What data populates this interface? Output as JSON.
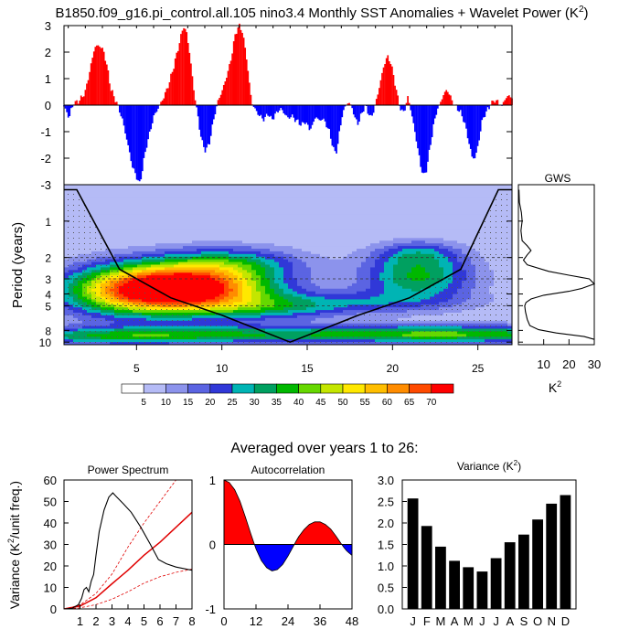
{
  "title": {
    "main": "B1850.f09_g16.pi_control.all.105 nino3.4 Monthly SST Anomalies + Wavelet Power (K",
    "sup": "2",
    "close": ")"
  },
  "subtitle": "Averaged over years 1 to 26:",
  "colors": {
    "positive": "#ff0000",
    "negative": "#0000ff",
    "sig_line": "#e00000"
  },
  "chart_data": [
    {
      "type": "area",
      "name": "anomaly-timeseries",
      "xlim": [
        0.75,
        27
      ],
      "ylim": [
        -3,
        3
      ],
      "yticks": [
        3,
        2,
        1,
        0,
        -1,
        -2,
        -3
      ],
      "anchors": [
        [
          0.75,
          -0.05
        ],
        [
          0.9,
          -0.25
        ],
        [
          1.05,
          -0.5
        ],
        [
          1.2,
          -0.1
        ],
        [
          1.4,
          0.08
        ],
        [
          1.7,
          0.2
        ],
        [
          2.0,
          0.5
        ],
        [
          2.3,
          1.4
        ],
        [
          2.55,
          2.2
        ],
        [
          2.85,
          2.25
        ],
        [
          3.1,
          2.0
        ],
        [
          3.35,
          1.2
        ],
        [
          3.5,
          0.6
        ],
        [
          3.7,
          0.3
        ],
        [
          3.9,
          0.0
        ],
        [
          4.2,
          -0.6
        ],
        [
          4.5,
          -1.5
        ],
        [
          4.75,
          -2.3
        ],
        [
          5.0,
          -2.7
        ],
        [
          5.2,
          -3.0
        ],
        [
          5.4,
          -2.2
        ],
        [
          5.6,
          -1.5
        ],
        [
          5.8,
          -1.0
        ],
        [
          6.0,
          -0.45
        ],
        [
          6.2,
          -0.2
        ],
        [
          6.4,
          0.05
        ],
        [
          6.6,
          0.3
        ],
        [
          6.9,
          0.8
        ],
        [
          7.2,
          1.5
        ],
        [
          7.5,
          2.3
        ],
        [
          7.75,
          3.0
        ],
        [
          7.95,
          2.7
        ],
        [
          8.15,
          1.8
        ],
        [
          8.35,
          0.6
        ],
        [
          8.5,
          0.0
        ],
        [
          8.7,
          -0.9
        ],
        [
          8.9,
          -1.55
        ],
        [
          9.05,
          -1.7
        ],
        [
          9.25,
          -1.5
        ],
        [
          9.45,
          -0.8
        ],
        [
          9.6,
          -0.3
        ],
        [
          9.8,
          0.2
        ],
        [
          10.0,
          0.5
        ],
        [
          10.2,
          0.9
        ],
        [
          10.5,
          1.6
        ],
        [
          10.8,
          2.7
        ],
        [
          11.0,
          3.0
        ],
        [
          11.2,
          2.8
        ],
        [
          11.45,
          1.8
        ],
        [
          11.65,
          0.6
        ],
        [
          11.8,
          0.0
        ],
        [
          11.95,
          -0.15
        ],
        [
          12.2,
          -0.4
        ],
        [
          12.5,
          -0.55
        ],
        [
          12.7,
          -0.3
        ],
        [
          12.9,
          -0.55
        ],
        [
          13.1,
          -0.4
        ],
        [
          13.3,
          -0.2
        ],
        [
          13.5,
          -0.15
        ],
        [
          13.7,
          -0.35
        ],
        [
          13.9,
          -0.5
        ],
        [
          14.1,
          -0.4
        ],
        [
          14.3,
          -0.55
        ],
        [
          14.5,
          -0.65
        ],
        [
          14.7,
          -0.75
        ],
        [
          14.9,
          -0.6
        ],
        [
          15.1,
          -0.9
        ],
        [
          15.3,
          -0.8
        ],
        [
          15.5,
          -0.4
        ],
        [
          15.7,
          -0.6
        ],
        [
          15.9,
          -0.5
        ],
        [
          16.1,
          -0.7
        ],
        [
          16.3,
          -1.0
        ],
        [
          16.45,
          -1.4
        ],
        [
          16.6,
          -1.8
        ],
        [
          16.75,
          -1.7
        ],
        [
          16.9,
          -1.0
        ],
        [
          17.05,
          -0.4
        ],
        [
          17.2,
          -0.1
        ],
        [
          17.4,
          0.1
        ],
        [
          17.6,
          0.0
        ],
        [
          17.8,
          -0.5
        ],
        [
          18.0,
          -0.7
        ],
        [
          18.2,
          -0.3
        ],
        [
          18.4,
          0.0
        ],
        [
          18.6,
          -0.3
        ],
        [
          18.75,
          -0.5
        ],
        [
          18.9,
          -0.2
        ],
        [
          19.1,
          0.3
        ],
        [
          19.3,
          0.9
        ],
        [
          19.5,
          1.5
        ],
        [
          19.7,
          1.85
        ],
        [
          19.9,
          1.6
        ],
        [
          20.1,
          1.0
        ],
        [
          20.3,
          0.3
        ],
        [
          20.45,
          -0.1
        ],
        [
          20.6,
          -0.3
        ],
        [
          20.75,
          -0.1
        ],
        [
          20.9,
          0.3
        ],
        [
          21.0,
          0.05
        ],
        [
          21.2,
          -0.6
        ],
        [
          21.45,
          -1.5
        ],
        [
          21.65,
          -2.3
        ],
        [
          21.85,
          -2.7
        ],
        [
          22.0,
          -2.4
        ],
        [
          22.2,
          -1.6
        ],
        [
          22.4,
          -0.8
        ],
        [
          22.6,
          -0.2
        ],
        [
          22.8,
          0.1
        ],
        [
          23.0,
          0.4
        ],
        [
          23.2,
          0.6
        ],
        [
          23.4,
          0.3
        ],
        [
          23.6,
          0.05
        ],
        [
          23.8,
          -0.1
        ],
        [
          24.0,
          -0.3
        ],
        [
          24.2,
          -0.6
        ],
        [
          24.45,
          -1.3
        ],
        [
          24.65,
          -1.95
        ],
        [
          24.85,
          -2.0
        ],
        [
          25.05,
          -1.4
        ],
        [
          25.25,
          -0.6
        ],
        [
          25.45,
          -0.3
        ],
        [
          25.65,
          -0.1
        ],
        [
          25.8,
          0.05
        ],
        [
          26.0,
          0.2
        ],
        [
          26.2,
          0.1
        ],
        [
          26.4,
          -0.05
        ],
        [
          26.6,
          0.25
        ],
        [
          26.8,
          0.35
        ],
        [
          27.0,
          0.3
        ]
      ]
    },
    {
      "type": "heatmap",
      "name": "wavelet-power",
      "xlabel": "",
      "ylabel": "Period (years)",
      "xlim": [
        0.75,
        27
      ],
      "xticks": [
        5,
        10,
        15,
        20,
        25
      ],
      "ylim": [
        0.5,
        10.5
      ],
      "yticks": [
        1,
        2,
        3,
        4,
        5,
        8,
        10
      ],
      "levels": [
        0,
        5,
        10,
        15,
        20,
        25,
        30,
        35,
        40,
        45,
        50,
        55,
        60,
        65,
        70
      ],
      "level_colors": [
        "#ffffff",
        "#b5bbf6",
        "#8c93ec",
        "#5b64e2",
        "#3038d8",
        "#00b4b4",
        "#00a060",
        "#00b800",
        "#66d800",
        "#c4e600",
        "#ffe800",
        "#ffbe00",
        "#ff8c00",
        "#ff4a00",
        "#ff0000"
      ],
      "background_level": 5,
      "peaks": [
        {
          "t": 8.0,
          "p": 3.6,
          "st": 3.4,
          "sp": 0.32,
          "a": 72
        },
        {
          "t": 4.0,
          "p": 3.8,
          "st": 2.8,
          "sp": 0.35,
          "a": 30
        },
        {
          "t": 10.5,
          "p": 2.2,
          "st": 3.0,
          "sp": 0.22,
          "a": 20
        },
        {
          "t": 21.5,
          "p": 2.9,
          "st": 2.3,
          "sp": 0.3,
          "a": 30
        },
        {
          "t": 21.5,
          "p": 1.85,
          "st": 1.8,
          "sp": 0.18,
          "a": 16
        },
        {
          "t": 16.0,
          "p": 8.6,
          "st": 14.0,
          "sp": 0.12,
          "a": 28
        },
        {
          "t": 4.0,
          "p": 9.2,
          "st": 4.5,
          "sp": 0.1,
          "a": 14
        },
        {
          "t": 24.0,
          "p": 8.6,
          "st": 4.5,
          "sp": 0.12,
          "a": 12
        },
        {
          "t": 17.0,
          "p": 4.7,
          "st": 5.0,
          "sp": 0.16,
          "a": 16
        },
        {
          "t": 13.0,
          "p": 5.5,
          "st": 3.0,
          "sp": 0.15,
          "a": 12
        }
      ],
      "cone_of_influence": [
        [
          0.75,
          0.55
        ],
        [
          1.5,
          0.55
        ],
        [
          4.0,
          2.5
        ],
        [
          7.0,
          4.3
        ],
        [
          10.0,
          6.0
        ],
        [
          14.0,
          10.0
        ],
        [
          18.0,
          6.0
        ],
        [
          21.0,
          4.3
        ],
        [
          24.0,
          2.5
        ],
        [
          26.2,
          0.55
        ],
        [
          27.0,
          0.55
        ]
      ],
      "sig_dashed_periods": [
        2.0,
        3.0,
        5.0
      ]
    },
    {
      "type": "line",
      "name": "global-wavelet-spectrum",
      "title": "GWS",
      "xlabel": "K",
      "xlabel_sup": "2",
      "xlim": [
        0,
        30
      ],
      "xticks": [
        10,
        20,
        30
      ],
      "points": [
        [
          0.55,
          0.2
        ],
        [
          0.7,
          0.4
        ],
        [
          0.85,
          1.2
        ],
        [
          1.0,
          1.5
        ],
        [
          1.2,
          1.0
        ],
        [
          1.45,
          1.5
        ],
        [
          1.6,
          3.5
        ],
        [
          1.75,
          5.0
        ],
        [
          1.9,
          3.5
        ],
        [
          2.1,
          2.0
        ],
        [
          2.3,
          3.5
        ],
        [
          2.6,
          12.0
        ],
        [
          2.8,
          20.0
        ],
        [
          3.0,
          28.0
        ],
        [
          3.3,
          30.0
        ],
        [
          3.6,
          25.0
        ],
        [
          3.8,
          20.0
        ],
        [
          4.1,
          10.0
        ],
        [
          4.4,
          5.0
        ],
        [
          4.7,
          3.0
        ],
        [
          5.0,
          2.5
        ],
        [
          5.6,
          2.8
        ],
        [
          6.5,
          3.5
        ],
        [
          7.3,
          4.5
        ],
        [
          7.9,
          8.0
        ],
        [
          8.4,
          15.0
        ],
        [
          9.0,
          26.0
        ],
        [
          9.5,
          30.0
        ]
      ]
    },
    {
      "type": "line",
      "name": "power-spectrum",
      "title": "Power Spectrum",
      "ylabel": "Variance (K",
      "ylabel_sup": "2",
      "ylabel_rest": "/unit freq.)",
      "xlim": [
        0,
        8
      ],
      "xticks": [
        1,
        2,
        3,
        4,
        5,
        6,
        7,
        8
      ],
      "ylim": [
        0,
        60
      ],
      "yticks": [
        0,
        10,
        20,
        30,
        40,
        50,
        60
      ],
      "spectrum": [
        [
          0,
          0
        ],
        [
          0.5,
          0.3
        ],
        [
          0.9,
          2
        ],
        [
          1.1,
          5
        ],
        [
          1.25,
          9
        ],
        [
          1.4,
          10
        ],
        [
          1.55,
          8
        ],
        [
          1.7,
          13
        ],
        [
          1.85,
          16
        ],
        [
          2.0,
          25
        ],
        [
          2.2,
          36
        ],
        [
          2.5,
          46
        ],
        [
          2.8,
          52
        ],
        [
          3.05,
          54
        ],
        [
          3.3,
          52
        ],
        [
          3.7,
          49
        ],
        [
          4.2,
          45
        ],
        [
          4.8,
          38
        ],
        [
          5.4,
          30
        ],
        [
          5.9,
          23
        ],
        [
          6.4,
          21
        ],
        [
          7.0,
          19.5
        ],
        [
          8.0,
          18
        ]
      ],
      "red_noise": [
        [
          0,
          0
        ],
        [
          1,
          1.3
        ],
        [
          2,
          5.2
        ],
        [
          3,
          11.7
        ],
        [
          4,
          18
        ],
        [
          5,
          25
        ],
        [
          6,
          31
        ],
        [
          7,
          38
        ],
        [
          8,
          45
        ]
      ],
      "conf_upper": [
        [
          0,
          0
        ],
        [
          1,
          1.8
        ],
        [
          2,
          7.2
        ],
        [
          3,
          16.2
        ],
        [
          4,
          28.8
        ],
        [
          5,
          40
        ],
        [
          6,
          50
        ],
        [
          7,
          60
        ]
      ],
      "conf_lower": [
        [
          0,
          0
        ],
        [
          1,
          0.5
        ],
        [
          2,
          2
        ],
        [
          3,
          4.5
        ],
        [
          4,
          8
        ],
        [
          5,
          12
        ],
        [
          6,
          15
        ],
        [
          7,
          17
        ],
        [
          8,
          18.5
        ]
      ]
    },
    {
      "type": "area",
      "name": "autocorrelation",
      "title": "Autocorrelation",
      "xlim": [
        0,
        48
      ],
      "xticks": [
        0,
        12,
        24,
        36,
        48
      ],
      "ylim": [
        -1,
        1
      ],
      "yticks": [
        -1,
        0,
        1
      ],
      "points": [
        [
          0,
          1.0
        ],
        [
          2,
          0.96
        ],
        [
          4,
          0.85
        ],
        [
          6,
          0.67
        ],
        [
          8,
          0.43
        ],
        [
          10,
          0.17
        ],
        [
          11,
          0.05
        ],
        [
          12,
          -0.07
        ],
        [
          14,
          -0.25
        ],
        [
          16,
          -0.36
        ],
        [
          18,
          -0.41
        ],
        [
          20,
          -0.39
        ],
        [
          22,
          -0.31
        ],
        [
          24,
          -0.18
        ],
        [
          26,
          -0.03
        ],
        [
          27,
          0.05
        ],
        [
          28,
          0.12
        ],
        [
          30,
          0.23
        ],
        [
          32,
          0.31
        ],
        [
          34,
          0.35
        ],
        [
          36,
          0.35
        ],
        [
          38,
          0.31
        ],
        [
          40,
          0.24
        ],
        [
          42,
          0.13
        ],
        [
          43,
          0.07
        ],
        [
          44,
          0.01
        ],
        [
          45,
          -0.05
        ],
        [
          46,
          -0.1
        ],
        [
          48,
          -0.17
        ]
      ]
    },
    {
      "type": "bar",
      "name": "monthly-variance",
      "title": "Variance (K",
      "title_sup": "2",
      "title_close": ")",
      "categories": [
        "J",
        "F",
        "M",
        "A",
        "M",
        "J",
        "J",
        "A",
        "S",
        "O",
        "N",
        "D"
      ],
      "values": [
        2.57,
        1.93,
        1.45,
        1.12,
        0.97,
        0.87,
        1.18,
        1.55,
        1.73,
        2.08,
        2.45,
        2.65
      ],
      "ylim": [
        0,
        3.0
      ],
      "yticks": [
        0.0,
        0.5,
        1.0,
        1.5,
        2.0,
        2.5,
        3.0
      ]
    }
  ]
}
